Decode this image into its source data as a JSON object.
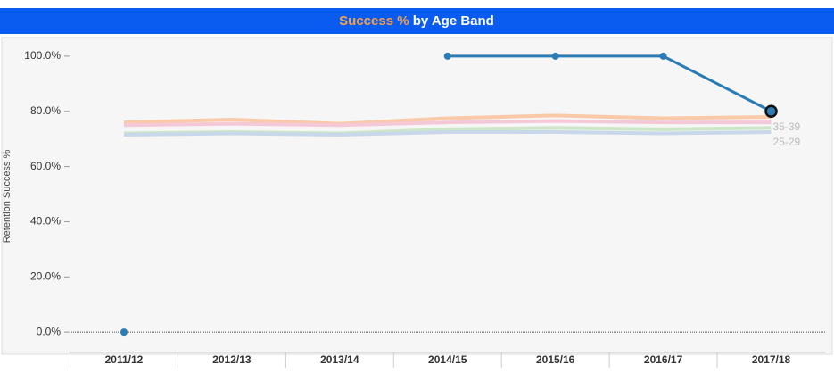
{
  "chart_data": {
    "type": "line",
    "title": {
      "highlight": "Success %",
      "rest": "by Age Band"
    },
    "y_label": "Retention Success %",
    "categories": [
      "2011/12",
      "2012/13",
      "2013/14",
      "2014/15",
      "2015/16",
      "2016/17",
      "2017/18"
    ],
    "ylim": [
      -7.4,
      105.8
    ],
    "yticks": [
      {
        "value": 0,
        "label": "0.0%"
      },
      {
        "value": 20,
        "label": "20.0%"
      },
      {
        "value": 40,
        "label": "40.0%"
      },
      {
        "value": 60,
        "label": "60.0%"
      },
      {
        "value": 80,
        "label": "80.0%"
      },
      {
        "value": 100,
        "label": "100.0%"
      }
    ],
    "series": [
      {
        "color": "#f9c9a8",
        "values": [
          76,
          77,
          75.5,
          77.5,
          78.5,
          77.5,
          78
        ],
        "name": "35-39"
      },
      {
        "color": "#f5c8d8",
        "values": [
          75,
          75.5,
          75,
          76,
          76.5,
          76,
          76
        ]
      },
      {
        "color": "#cde6c8",
        "values": [
          72,
          72.5,
          72,
          73.5,
          74,
          73.5,
          74
        ]
      },
      {
        "color": "#c8d8ea",
        "values": [
          71.5,
          72,
          71.5,
          72.5,
          72.5,
          72,
          72.5
        ],
        "name": "25-29"
      },
      {
        "color": "#2b7bb5",
        "values": [
          0,
          null,
          null,
          100,
          100,
          100,
          80
        ],
        "highlight": true
      }
    ]
  }
}
